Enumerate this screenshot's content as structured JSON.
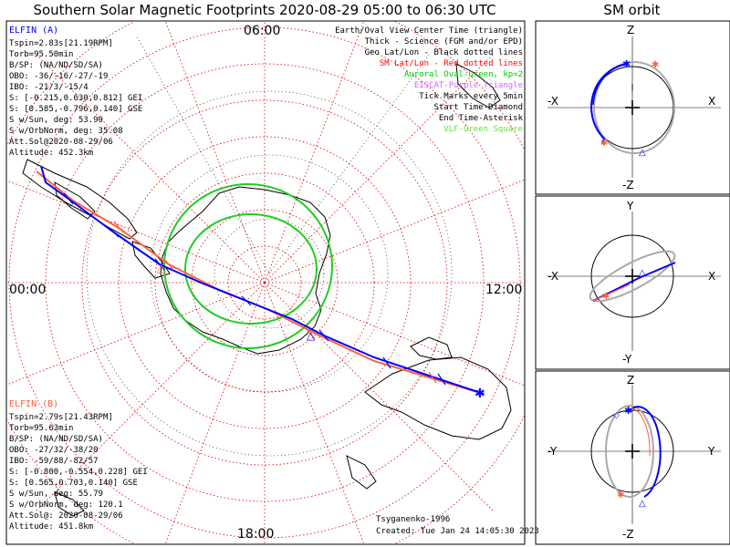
{
  "title": "Southern Solar Magnetic Footprints 2020-08-29 05:00 to 06:30 UTC",
  "sm_title": "SM orbit",
  "map": {
    "clock_labels": {
      "top": "06:00",
      "left": "00:00",
      "right": "12:00",
      "bottom": "18:00"
    }
  },
  "elfin_a": {
    "name": "ELFIN (A)",
    "color": "#0000ff",
    "lines": [
      "Tspin=2.83s[21.19RPM]",
      "Torb=95.50min",
      "B/SP: (NA/ND/SD/SA)",
      "OBO: -36/-16/-27/-19",
      "IBO: -21/3/-15/4",
      "S: [-0.215,0.630,0.812] GEI",
      "S: [0.585,-0.796,0.140] GSE",
      "S w/Sun, deg: 53.90",
      "S w/OrbNorm, deg: 35.08",
      "Att.Sol@2020-08-29/06",
      "Altitude: 452.3km"
    ]
  },
  "elfin_b": {
    "name": "ELFIN (B)",
    "color": "#ff6040",
    "lines": [
      "Tspin=2.79s[21.43RPM]",
      "Torb=95.63min",
      "B/SP: (NA/ND/SD/SA)",
      "OBO: -27/32/-38/20",
      "IBO: -59/88/-82/57",
      "S: [-0.800,-0.554,0.228] GEI",
      "S: [0.565,0.703,0.140] GSE",
      "S w/Sun, deg: 55.79",
      "S w/OrbNorm, deg: 120.1",
      "Att.Sol@: 2020-08-29/06",
      "Altitude: 451.8km"
    ]
  },
  "legend": [
    {
      "text": "Earth/Oval View Center Time (triangle)",
      "color": "#000000"
    },
    {
      "text": "Thick - Science (FGM and/or EPD)",
      "color": "#000000"
    },
    {
      "text": "Geo Lat/Lon - Black dotted lines",
      "color": "#000000"
    },
    {
      "text": "SM Lat/Lon - Red dotted lines",
      "color": "#ff0000"
    },
    {
      "text": "Auroral Oval-Green, kp=2",
      "color": "#00cc00"
    },
    {
      "text": "EISCAT-Purple Triangle",
      "color": "#cc66ff"
    },
    {
      "text": "Tick Marks every 5min",
      "color": "#000000"
    },
    {
      "text": "Start Time-Diamond",
      "color": "#000000"
    },
    {
      "text": "End Time-Asterisk",
      "color": "#000000"
    },
    {
      "text": "VLF-Green Square",
      "color": "#66dd44"
    }
  ],
  "credit": "Tsyganenko-1996",
  "created": "Created: Tue Jan 24 14:05:30 2023",
  "sm_panels": [
    {
      "name": "xz",
      "top": "Z",
      "bottom": "-Z",
      "left": "-X",
      "right": "X"
    },
    {
      "name": "xy",
      "top": "Y",
      "bottom": "-Y",
      "left": "-X",
      "right": "X"
    },
    {
      "name": "yz",
      "top": "Z",
      "bottom": "-Z",
      "left": "-Y",
      "right": "Y"
    }
  ],
  "colors": {
    "track_a": "#0000ff",
    "track_b": "#ff6040",
    "oval": "#22cc22",
    "grid": "#dd0000",
    "orbit": "#aaaaaa"
  }
}
